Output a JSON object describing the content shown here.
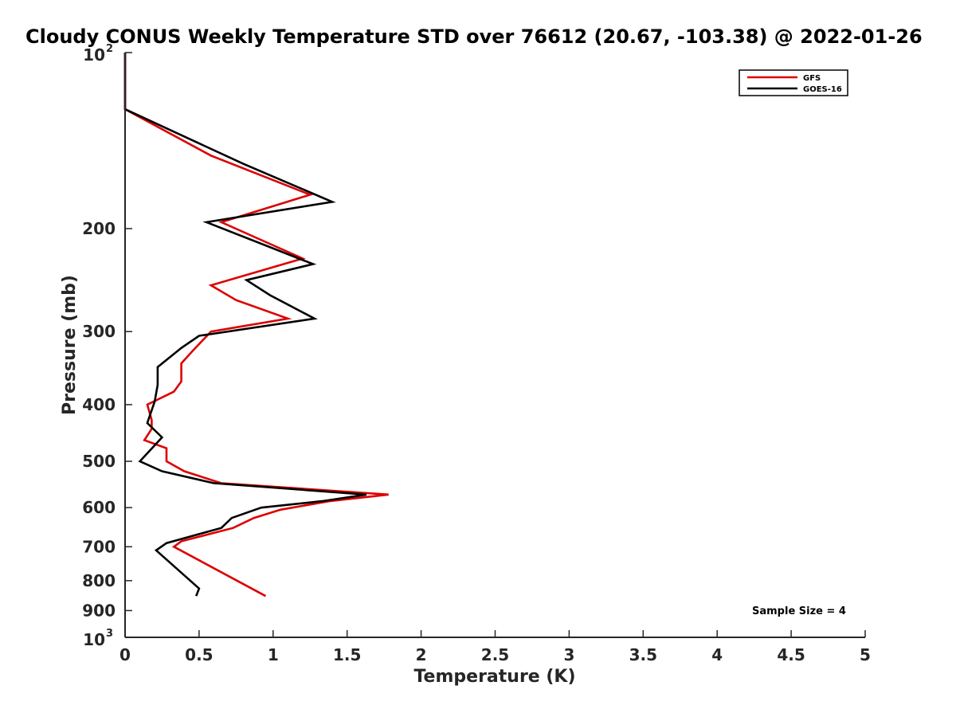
{
  "chart_data": {
    "type": "line",
    "title": "Cloudy CONUS Weekly Temperature STD over 76612 (20.67, -103.38) @ 2022-01-26",
    "xlabel": "Temperature (K)",
    "ylabel": "Pressure (mb)",
    "xlim": [
      0,
      5
    ],
    "ylim": [
      1000,
      100
    ],
    "yscale": "log",
    "y_reversed": true,
    "x_ticks": [
      "0",
      "0.5",
      "1",
      "1.5",
      "2",
      "2.5",
      "3",
      "3.5",
      "4",
      "4.5",
      "5"
    ],
    "y_ticks": [
      {
        "value": 100,
        "base": "10",
        "exp": "2"
      },
      {
        "value": 200,
        "label": "200"
      },
      {
        "value": 300,
        "label": "300"
      },
      {
        "value": 400,
        "label": "400"
      },
      {
        "value": 500,
        "label": "500"
      },
      {
        "value": 600,
        "label": "600"
      },
      {
        "value": 700,
        "label": "700"
      },
      {
        "value": 800,
        "label": "800"
      },
      {
        "value": 900,
        "label": "900"
      },
      {
        "value": 1000,
        "base": "10",
        "exp": "3"
      }
    ],
    "legend_position": "top-right",
    "grid": false,
    "annotation": "Sample Size = 4",
    "series": [
      {
        "name": "GFS",
        "color": "#dd0000",
        "points": [
          [
            0,
            100
          ],
          [
            0,
            125
          ],
          [
            0.58,
            150
          ],
          [
            1.25,
            175
          ],
          [
            0.65,
            195
          ],
          [
            1.2,
            225
          ],
          [
            0.58,
            250
          ],
          [
            0.75,
            265
          ],
          [
            1.1,
            285
          ],
          [
            0.58,
            300
          ],
          [
            0.45,
            325
          ],
          [
            0.38,
            340
          ],
          [
            0.38,
            365
          ],
          [
            0.33,
            380
          ],
          [
            0.15,
            400
          ],
          [
            0.18,
            425
          ],
          [
            0.18,
            440
          ],
          [
            0.13,
            460
          ],
          [
            0.28,
            475
          ],
          [
            0.28,
            500
          ],
          [
            0.4,
            520
          ],
          [
            0.65,
            545
          ],
          [
            1.78,
            570
          ],
          [
            1.38,
            585
          ],
          [
            1.05,
            605
          ],
          [
            0.87,
            625
          ],
          [
            0.73,
            650
          ],
          [
            0.38,
            685
          ],
          [
            0.33,
            700
          ],
          [
            0.95,
            850
          ]
        ]
      },
      {
        "name": "GOES-16",
        "color": "#000000",
        "points": [
          [
            0,
            100
          ],
          [
            0,
            125
          ],
          [
            0.8,
            155
          ],
          [
            1.4,
            180
          ],
          [
            0.55,
            195
          ],
          [
            1.27,
            230
          ],
          [
            0.82,
            245
          ],
          [
            0.98,
            260
          ],
          [
            1.28,
            285
          ],
          [
            0.5,
            305
          ],
          [
            0.38,
            320
          ],
          [
            0.22,
            345
          ],
          [
            0.22,
            370
          ],
          [
            0.2,
            395
          ],
          [
            0.15,
            430
          ],
          [
            0.25,
            455
          ],
          [
            0.1,
            500
          ],
          [
            0.25,
            520
          ],
          [
            0.6,
            545
          ],
          [
            1.63,
            570
          ],
          [
            1.33,
            585
          ],
          [
            0.92,
            600
          ],
          [
            0.72,
            625
          ],
          [
            0.65,
            650
          ],
          [
            0.28,
            690
          ],
          [
            0.21,
            710
          ],
          [
            0.5,
            825
          ],
          [
            0.48,
            850
          ]
        ]
      }
    ]
  }
}
